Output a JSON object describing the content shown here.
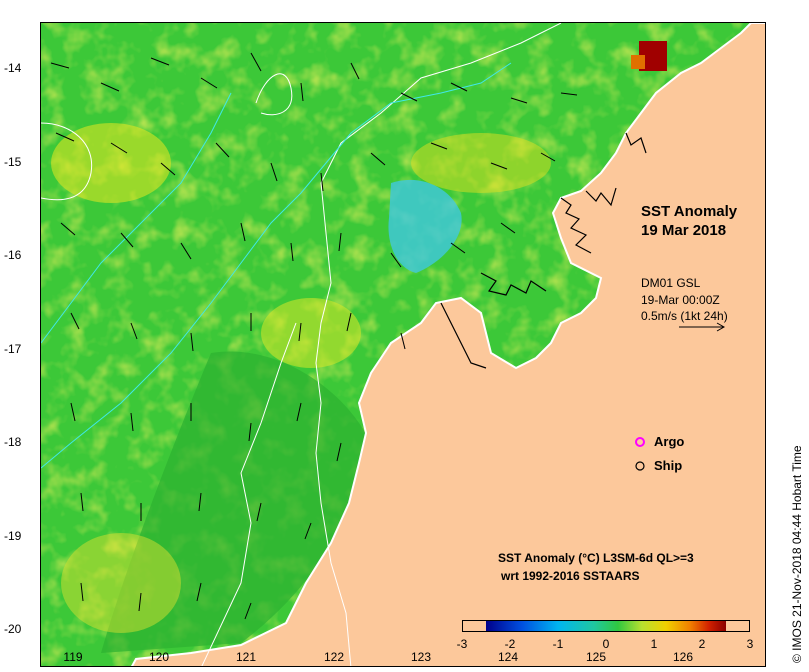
{
  "map": {
    "title": "SST Anomaly",
    "date": "19 Mar 2018",
    "vector_info": {
      "line1": "DM01 GSL",
      "line2": "19-Mar 00:00Z",
      "line3": "0.5m/s (1kt 24h)"
    },
    "legend": {
      "argo": "Argo",
      "ship": "Ship",
      "argo_color": "#ff00ff",
      "ship_color": "#000000"
    },
    "colorbar": {
      "title_line1": "SST Anomaly (°C) L3SM-6d QL>=3",
      "title_line2": "wrt 1992-2016 SSTAARS",
      "ticks": [
        "-3",
        "-2",
        "-1",
        "0",
        "1",
        "2",
        "3"
      ],
      "colors": [
        "#00008b",
        "#0050e0",
        "#00b4f0",
        "#20c8a0",
        "#30c840",
        "#b8e030",
        "#f0d000",
        "#f08000",
        "#d02000",
        "#8b0000"
      ]
    },
    "lat_labels": [
      "-14",
      "-15",
      "-16",
      "-17",
      "-18",
      "-19",
      "-20"
    ],
    "lon_labels": [
      "119",
      "120",
      "121",
      "122",
      "123",
      "124",
      "125",
      "126"
    ],
    "credit": "© IMOS 21-Nov-2018 04:44 Hobart Time",
    "land_color": "#fcc89b",
    "ocean_color": "#3cc838"
  }
}
